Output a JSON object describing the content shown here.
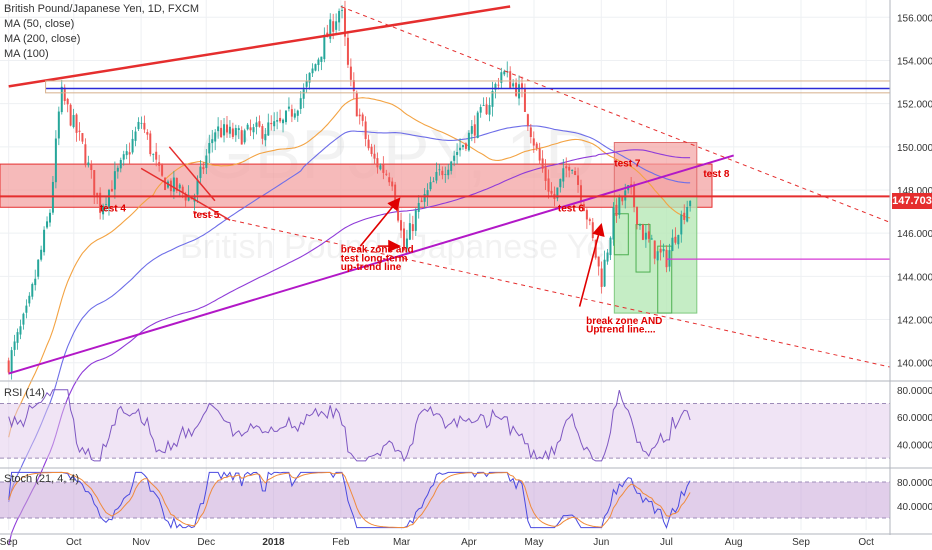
{
  "header": {
    "symbol_line": "British Pound/Japanese Yen, 1D, FXCM",
    "ma50": "MA (50, close)",
    "ma200": "MA (200, close)",
    "ma100": "MA (100)"
  },
  "watermark": {
    "big": "GBPJPY, 1D",
    "sub": "British Pound / Japanese Yen"
  },
  "last_price": "147.703",
  "colors": {
    "up_candle": "#26a69a",
    "down_candle": "#ef5350",
    "channel_red": "#e52e2e",
    "uptrend_purple": "#b218c7",
    "blue_level": "#2b2bd6",
    "ma50": "#f3a343",
    "ma200": "#8f3bd8",
    "ma100": "#6e6ee8",
    "zone_fill": "#f3a3a3",
    "green_fill": "#b7e8b7",
    "rsi_line": "#7e57c2",
    "stoch_k": "#4a4ae0",
    "stoch_d": "#f08a3c"
  },
  "rsi": {
    "label": "RSI (14)"
  },
  "stoch": {
    "label": "Stoch (21, 4, 4)"
  },
  "chart_data": {
    "type": "candlestick",
    "instrument": "British Pound/Japanese Yen, 1D, FXCM",
    "x_ticks": [
      "Sep",
      "Oct",
      "Nov",
      "Dec",
      "2018",
      "Feb",
      "Mar",
      "Apr",
      "May",
      "Jun",
      "Jul",
      "Aug",
      "Sep",
      "Oct"
    ],
    "price_axis": {
      "ticks": [
        "156.000",
        "154.000",
        "152.000",
        "150.000",
        "148.000",
        "146.000",
        "144.000",
        "142.000",
        "140.000"
      ],
      "ylim": [
        139.2,
        156.8
      ]
    },
    "price_path": [
      [
        "2017-09-01",
        140.0
      ],
      [
        "2017-09-10",
        142.5
      ],
      [
        "2017-09-20",
        147.0
      ],
      [
        "2017-09-25",
        152.5
      ],
      [
        "2017-10-05",
        150.0
      ],
      [
        "2017-10-13",
        147.2
      ],
      [
        "2017-10-25",
        149.5
      ],
      [
        "2017-11-01",
        151.2
      ],
      [
        "2017-11-10",
        148.5
      ],
      [
        "2017-11-25",
        147.6
      ],
      [
        "2017-12-05",
        150.8
      ],
      [
        "2017-12-15",
        150.5
      ],
      [
        "2018-01-05",
        151.0
      ],
      [
        "2018-01-15",
        152.5
      ],
      [
        "2018-01-25",
        155.0
      ],
      [
        "2018-02-01",
        156.5
      ],
      [
        "2018-02-05",
        153.0
      ],
      [
        "2018-02-15",
        149.5
      ],
      [
        "2018-02-25",
        148.5
      ],
      [
        "2018-03-02",
        145.2
      ],
      [
        "2018-03-08",
        147.0
      ],
      [
        "2018-03-20",
        149.0
      ],
      [
        "2018-04-01",
        150.5
      ],
      [
        "2018-04-10",
        152.0
      ],
      [
        "2018-04-16",
        153.5
      ],
      [
        "2018-04-25",
        152.5
      ],
      [
        "2018-05-03",
        149.5
      ],
      [
        "2018-05-10",
        147.5
      ],
      [
        "2018-05-18",
        149.5
      ],
      [
        "2018-05-25",
        147.0
      ],
      [
        "2018-06-01",
        143.8
      ],
      [
        "2018-06-07",
        147.0
      ],
      [
        "2018-06-14",
        148.0
      ],
      [
        "2018-06-20",
        146.0
      ],
      [
        "2018-06-27",
        145.0
      ],
      [
        "2018-07-01",
        144.8
      ],
      [
        "2018-07-07",
        146.5
      ],
      [
        "2018-07-12",
        147.7
      ]
    ],
    "lines": [
      {
        "name": "upper channel",
        "from": [
          "2017-09-01",
          152.8
        ],
        "to": [
          "2018-04-20",
          156.5
        ]
      },
      {
        "name": "uptrend line",
        "from": [
          "2017-09-01",
          139.5
        ],
        "to": [
          "2018-08-01",
          149.6
        ]
      },
      {
        "name": "descending resistance",
        "from": [
          "2018-02-01",
          156.5
        ],
        "to": [
          "2018-10-05",
          146.5
        ]
      },
      {
        "name": "descending support",
        "from": [
          "2017-11-25",
          147.0
        ],
        "to": [
          "2018-10-05",
          139.8
        ]
      },
      {
        "name": "horizontal resistance",
        "y": 152.7
      },
      {
        "name": "horizontal level",
        "y": 147.703
      },
      {
        "name": "magenta level",
        "from": [
          "2018-07-01",
          144.8
        ],
        "to": [
          "2018-10-05",
          144.8
        ]
      }
    ],
    "zones": [
      {
        "name": "break zone",
        "ymin": 147.2,
        "ymax": 149.2
      },
      {
        "name": "red box",
        "x": [
          "2018-06-07",
          "2018-07-15"
        ],
        "ymin": 147.7,
        "ymax": 150.2
      },
      {
        "name": "green box",
        "x": [
          "2018-06-07",
          "2018-07-15"
        ],
        "ymin": 142.3,
        "ymax": 147.7
      }
    ],
    "annotations": [
      {
        "text": "test 4",
        "x": "2017-10-13",
        "y": 147.0
      },
      {
        "text": "test 5",
        "x": "2017-11-25",
        "y": 146.7
      },
      {
        "text": "break zone and",
        "x": "2018-02-01",
        "y": 145.1
      },
      {
        "text": "test long-term",
        "x": "2018-02-01",
        "y": 144.7
      },
      {
        "text": "up-trend line",
        "x": "2018-02-01",
        "y": 144.3
      },
      {
        "text": "test 6",
        "x": "2018-05-12",
        "y": 147.0
      },
      {
        "text": "test 7",
        "x": "2018-06-07",
        "y": 149.1
      },
      {
        "text": "test 8",
        "x": "2018-07-18",
        "y": 148.6
      },
      {
        "text": "break zone AND",
        "x": "2018-05-25",
        "y": 141.8
      },
      {
        "text": "Uptrend line....",
        "x": "2018-05-25",
        "y": 141.4
      }
    ],
    "rsi": {
      "ticks": [
        "80.0000",
        "60.0000",
        "40.0000"
      ],
      "ylim": [
        25,
        85
      ],
      "band": [
        30,
        70
      ]
    },
    "stoch": {
      "ticks": [
        "80.0000",
        "40.0000"
      ],
      "ylim": [
        0,
        100
      ],
      "band": [
        20,
        80
      ]
    }
  }
}
